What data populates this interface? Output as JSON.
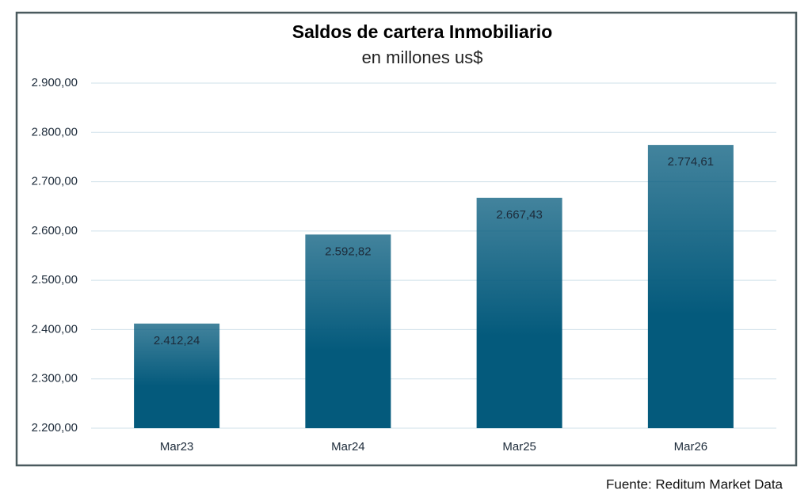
{
  "chart_data": {
    "type": "bar",
    "title": "Saldos de cartera Inmobiliario",
    "subtitle": "en millones us$",
    "categories": [
      "Mar23",
      "Mar24",
      "Mar25",
      "Mar26"
    ],
    "values": [
      2412.24,
      2592.82,
      2667.43,
      2774.61
    ],
    "value_labels": [
      "2.412,24",
      "2.592,82",
      "2.667,43",
      "2.774,61"
    ],
    "color": "#045a7c",
    "ylim": [
      2200,
      2900
    ],
    "yticks": [
      {
        "value": 2200,
        "label": "2.200,00"
      },
      {
        "value": 2300,
        "label": "2.300,00"
      },
      {
        "value": 2400,
        "label": "2.400,00"
      },
      {
        "value": 2500,
        "label": "2.500,00"
      },
      {
        "value": 2600,
        "label": "2.600,00"
      },
      {
        "value": 2700,
        "label": "2.700,00"
      },
      {
        "value": 2800,
        "label": "2.800,00"
      },
      {
        "value": 2900,
        "label": "2.900,00"
      }
    ],
    "grid": true,
    "source": "Fuente: Reditum Market Data"
  }
}
